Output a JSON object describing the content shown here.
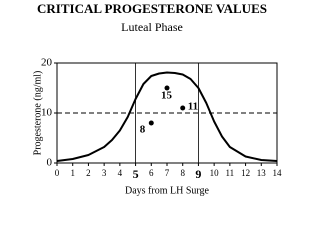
{
  "chart_data": {
    "type": "line",
    "title": "CRITICAL PROGESTERONE VALUES",
    "subtitle": "Luteal Phase",
    "x_label": "Days from LH Surge",
    "y_label": "Progesterone (ng/ml)",
    "xlim": [
      0,
      14
    ],
    "ylim": [
      0,
      20
    ],
    "xticks": [
      0,
      1,
      2,
      3,
      4,
      5,
      6,
      7,
      8,
      9,
      10,
      11,
      12,
      13,
      14
    ],
    "yticks": [
      0,
      10,
      20
    ],
    "grid": false,
    "reference_lines": {
      "x": [
        5,
        9
      ],
      "y": [
        10
      ]
    },
    "series": [
      {
        "type": "line",
        "color": "#000000",
        "x": [
          0,
          1,
          2,
          3,
          3.5,
          4,
          4.5,
          5,
          5.5,
          6,
          6.5,
          7,
          7.5,
          8,
          8.5,
          9,
          9.5,
          10,
          10.5,
          11,
          12,
          13,
          14
        ],
        "values": [
          0.4,
          0.8,
          1.6,
          3.2,
          4.6,
          6.5,
          9.2,
          12.8,
          15.8,
          17.4,
          17.9,
          18.1,
          18.0,
          17.7,
          16.8,
          15.0,
          12.0,
          8.3,
          5.3,
          3.2,
          1.3,
          0.6,
          0.4
        ]
      },
      {
        "type": "scatter",
        "color": "#000000",
        "x": [
          6,
          7,
          8
        ],
        "values": [
          8,
          15,
          11
        ]
      }
    ]
  }
}
